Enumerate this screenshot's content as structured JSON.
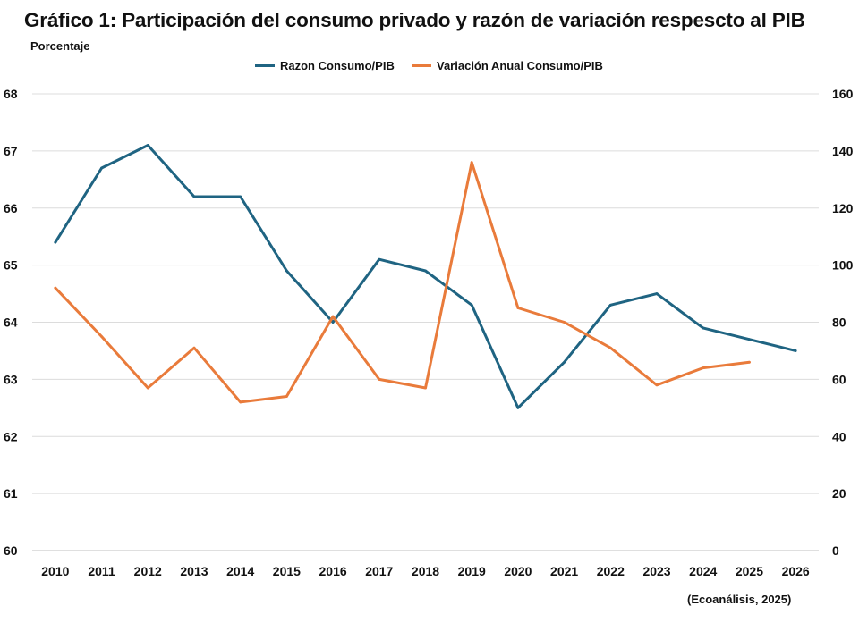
{
  "chart_data": {
    "type": "line",
    "title": "Gráfico 1: Participación del consumo privado y razón de variación respescto al PIB",
    "y_unit_label": "Porcentaje",
    "source": "(Ecoanálisis, 2025)",
    "x": [
      "2010",
      "2011",
      "2012",
      "2013",
      "2014",
      "2015",
      "2016",
      "2017",
      "2018",
      "2019",
      "2020",
      "2021",
      "2022",
      "2023",
      "2024",
      "2025",
      "2026"
    ],
    "y_left": {
      "range": [
        60,
        68
      ],
      "ticks": [
        "60",
        "61",
        "62",
        "63",
        "64",
        "65",
        "66",
        "67",
        "68"
      ]
    },
    "y_right": {
      "range": [
        0,
        160
      ],
      "ticks": [
        "0",
        "20",
        "40",
        "60",
        "80",
        "100",
        "120",
        "140",
        "160"
      ]
    },
    "grid": true,
    "legend_position": "top",
    "series": [
      {
        "name": "Razon Consumo/PIB",
        "axis": "left",
        "color": "#1f6482",
        "values": [
          65.4,
          66.7,
          67.1,
          66.2,
          66.2,
          64.9,
          64.0,
          65.1,
          64.9,
          64.3,
          62.5,
          63.3,
          64.3,
          64.5,
          63.9,
          63.7,
          63.5
        ]
      },
      {
        "name": "Variación Anual Consumo/PIB",
        "axis": "right",
        "color": "#e97b3b",
        "values": [
          92,
          75,
          57,
          71,
          52,
          54,
          82,
          60,
          57,
          136,
          85,
          80,
          71,
          58,
          64,
          66,
          null
        ]
      }
    ]
  }
}
